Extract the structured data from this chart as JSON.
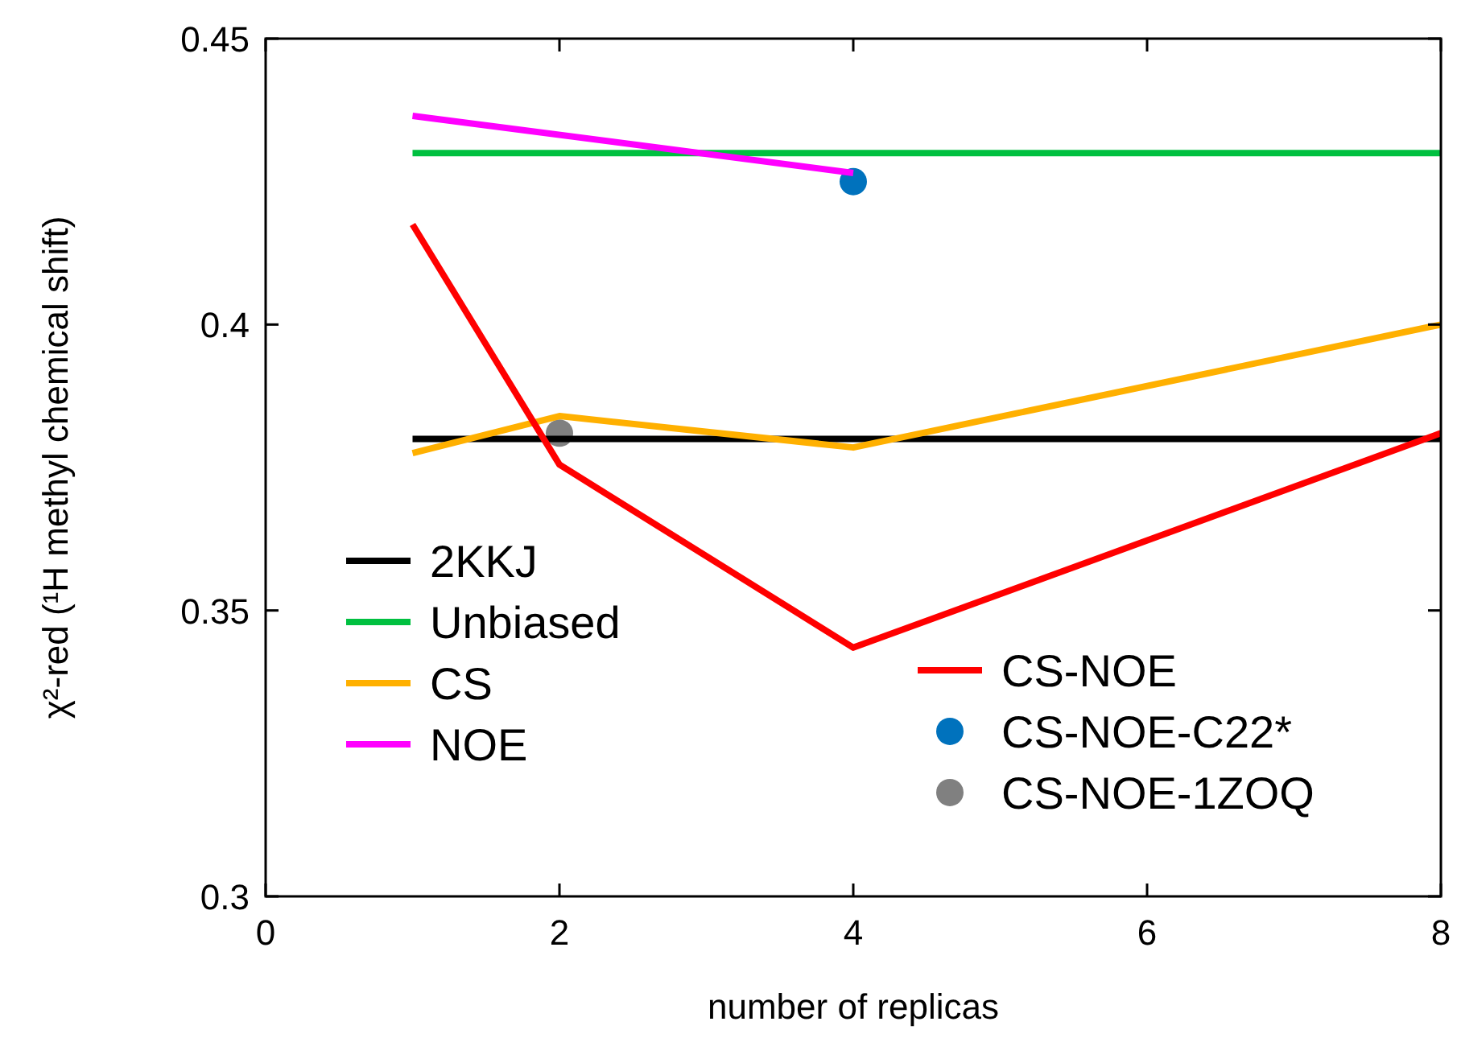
{
  "chart_data": {
    "type": "line",
    "xlabel": "number of replicas",
    "ylabel": "χ²-red (¹H methyl chemical shift)",
    "xlim": [
      0,
      8
    ],
    "ylim": [
      0.3,
      0.45
    ],
    "xticks": [
      0,
      2,
      4,
      6,
      8
    ],
    "yticks": [
      0.3,
      0.35,
      0.4,
      0.45
    ],
    "grid": false,
    "legend": "bottom",
    "marker": "none",
    "line_style": "solid",
    "series": [
      {
        "name": "2KKJ",
        "color": "#000000",
        "x": [
          1,
          8
        ],
        "values": [
          0.38,
          0.38
        ]
      },
      {
        "name": "Unbiased",
        "color": "#00c040",
        "x": [
          1,
          8
        ],
        "values": [
          0.43,
          0.43
        ]
      },
      {
        "name": "CS",
        "color": "#ffb000",
        "x": [
          1,
          2,
          4,
          8
        ],
        "values": [
          0.3775,
          0.384,
          0.3785,
          0.4
        ]
      },
      {
        "name": "NOE",
        "color": "#ff00ff",
        "x": [
          1,
          4
        ],
        "values": [
          0.4365,
          0.4265
        ]
      },
      {
        "name": "CS-NOE",
        "color": "#ff0000",
        "x": [
          1,
          2,
          4,
          8
        ],
        "values": [
          0.4175,
          0.3755,
          0.3435,
          0.381
        ]
      },
      {
        "name": "CS-NOE-C22*",
        "type": "scatter",
        "marker": "circle",
        "color": "#0072bd",
        "x": [
          4
        ],
        "values": [
          0.425
        ]
      },
      {
        "name": "CS-NOE-1ZOQ",
        "type": "scatter",
        "marker": "circle",
        "color": "#808080",
        "x": [
          2
        ],
        "values": [
          0.381
        ]
      }
    ]
  }
}
